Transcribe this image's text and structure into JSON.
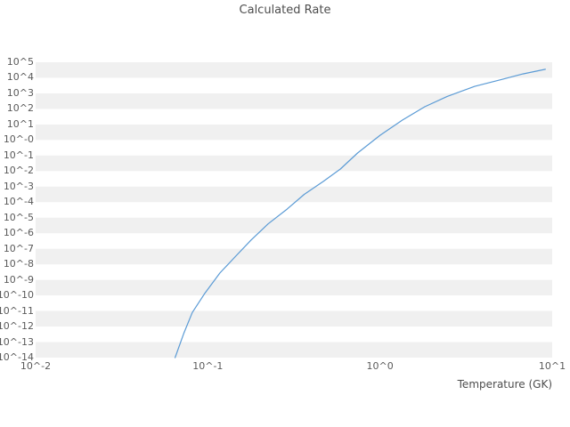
{
  "chart_data": {
    "type": "line",
    "title": "Calculated Rate",
    "xlabel": "Temperature (GK)",
    "ylabel": "",
    "x_scale": "log10",
    "y_scale": "log10",
    "xlim_log10": [
      -2,
      1
    ],
    "ylim_log10": [
      -14,
      5
    ],
    "grid": "alternating-horizontal-stripes",
    "stripe_color": "#f0f0f0",
    "legend_position": "none",
    "x_tick_log10": [
      -2,
      -1,
      0,
      1
    ],
    "x_tick_labels": [
      "10^-2",
      "10^-1",
      "10^0",
      "10^1"
    ],
    "y_tick_log10": [
      5,
      4,
      3,
      2,
      1,
      0,
      -1,
      -2,
      -3,
      -4,
      -5,
      -6,
      -7,
      -8,
      -9,
      -10,
      -11,
      -12,
      -13,
      -14
    ],
    "y_tick_labels": [
      "10^5",
      "10^4",
      "10^3",
      "10^2",
      "10^1",
      "10^-0",
      "10^-1",
      "10^-2",
      "10^-3",
      "10^-4",
      "10^-5",
      "10^-6",
      "10^-7",
      "10^-8",
      "10^-9",
      "10^-10",
      "10^-11",
      "10^-12",
      "10^-13",
      "10^-14"
    ],
    "series": [
      {
        "name": "calculated-rate",
        "color": "#5b9bd5",
        "points_log10": [
          [
            -1.19,
            -14.0
          ],
          [
            -1.14,
            -12.45
          ],
          [
            -1.09,
            -11.1
          ],
          [
            -1.02,
            -9.9
          ],
          [
            -0.93,
            -8.56
          ],
          [
            -0.84,
            -7.5
          ],
          [
            -0.75,
            -6.45
          ],
          [
            -0.65,
            -5.4
          ],
          [
            -0.54,
            -4.45
          ],
          [
            -0.44,
            -3.5
          ],
          [
            -0.33,
            -2.67
          ],
          [
            -0.23,
            -1.87
          ],
          [
            -0.13,
            -0.84
          ],
          [
            0.0,
            0.3
          ],
          [
            0.13,
            1.28
          ],
          [
            0.26,
            2.14
          ],
          [
            0.39,
            2.8
          ],
          [
            0.55,
            3.45
          ],
          [
            0.71,
            3.9
          ],
          [
            0.83,
            4.25
          ],
          [
            0.96,
            4.55
          ]
        ]
      }
    ]
  }
}
